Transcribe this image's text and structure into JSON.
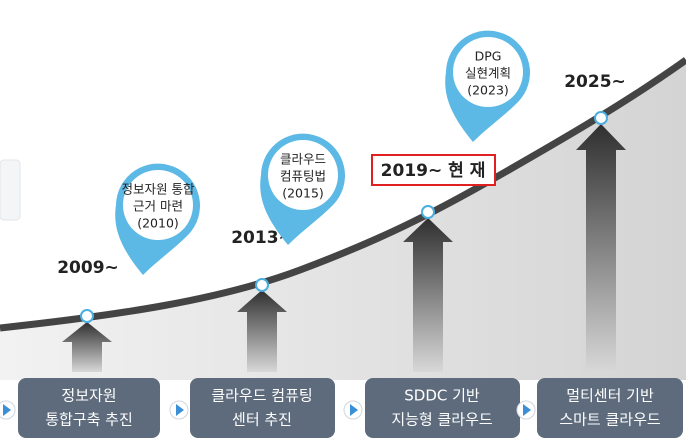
{
  "milestones": [
    {
      "year": "2009~",
      "task": [
        "정보자원",
        "통합구축 추진"
      ]
    },
    {
      "year": "2013~",
      "task": [
        "클라우드 컴퓨팅",
        "센터 추진"
      ]
    },
    {
      "year": "2019~ 현 재",
      "task": [
        "SDDC 기반",
        "지능형 클라우드"
      ]
    },
    {
      "year": "2025~",
      "task": [
        "멀티센터 기반",
        "스마트 클라우드"
      ]
    }
  ],
  "pins": [
    {
      "lines": [
        "정보자원 통합",
        "근거 마련",
        "(2010)"
      ]
    },
    {
      "lines": [
        "클라우드",
        "컴퓨팅법",
        "(2015)"
      ]
    },
    {
      "lines": [
        "DPG",
        "실현계획",
        "(2023)"
      ]
    }
  ]
}
